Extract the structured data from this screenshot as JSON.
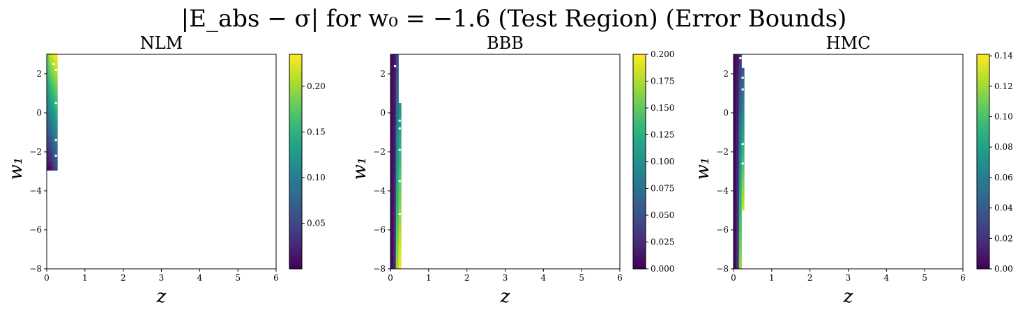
{
  "suptitle": "|E_abs − σ| for w₀ = −1.6 (Test Region) (Error Bounds)",
  "chart_data": [
    {
      "type": "heatmap",
      "title": "NLM",
      "xlabel": "z",
      "ylabel": "w₁",
      "xlim": [
        0,
        6
      ],
      "ylim": [
        -8,
        3
      ],
      "xticks": [
        "0",
        "1",
        "2",
        "3",
        "4",
        "5",
        "6"
      ],
      "yticks": [
        "−8",
        "−6",
        "−4",
        "−2",
        "0",
        "2"
      ],
      "colormap": "viridis",
      "colorbar": {
        "vmin": 0.0,
        "vmax": 0.235,
        "ticks": [
          "0.05",
          "0.10",
          "0.15",
          "0.20"
        ]
      },
      "data_extent": {
        "z": [
          0.0,
          0.28
        ],
        "w1": [
          -2.95,
          3.0
        ]
      },
      "columns": [
        {
          "z": [
            0.0,
            0.07
          ],
          "w1": [
            -2.95,
            3.0
          ],
          "value_bottom": 0.005,
          "value_top": 0.19
        },
        {
          "z": [
            0.07,
            0.14
          ],
          "w1": [
            -2.95,
            3.0
          ],
          "value_bottom": 0.01,
          "value_top": 0.215
        },
        {
          "z": [
            0.14,
            0.21
          ],
          "w1": [
            -2.95,
            3.0
          ],
          "value_bottom": 0.03,
          "value_top": 0.225
        },
        {
          "z": [
            0.21,
            0.28
          ],
          "w1": [
            -2.95,
            3.0
          ],
          "value_bottom": 0.05,
          "value_top": 0.235
        }
      ],
      "gaps": [
        {
          "z": 0.18,
          "w1": 2.5
        },
        {
          "z": 0.24,
          "w1": 2.2
        },
        {
          "z": 0.24,
          "w1": 0.5
        },
        {
          "z": 0.24,
          "w1": -1.4
        },
        {
          "z": 0.24,
          "w1": -2.2
        }
      ]
    },
    {
      "type": "heatmap",
      "title": "BBB",
      "xlabel": "z",
      "ylabel": "w₁",
      "xlim": [
        0,
        6
      ],
      "ylim": [
        -8,
        3
      ],
      "xticks": [
        "0",
        "1",
        "2",
        "3",
        "4",
        "5",
        "6"
      ],
      "yticks": [
        "−8",
        "−6",
        "−4",
        "−2",
        "0",
        "2"
      ],
      "colormap": "viridis",
      "colorbar": {
        "vmin": 0.0,
        "vmax": 0.2,
        "ticks": [
          "0.000",
          "0.025",
          "0.050",
          "0.075",
          "0.100",
          "0.125",
          "0.150",
          "0.175",
          "0.200"
        ]
      },
      "data_extent": {
        "z": [
          0.0,
          0.28
        ],
        "w1": [
          -8.0,
          3.0
        ]
      },
      "columns": [
        {
          "z": [
            0.0,
            0.07
          ],
          "w1": [
            -8.0,
            3.0
          ],
          "value_bottom": 0.005,
          "value_top": 0.005
        },
        {
          "z": [
            0.07,
            0.14
          ],
          "w1": [
            -8.0,
            3.0
          ],
          "value_bottom": 0.02,
          "value_top": 0.01
        },
        {
          "z": [
            0.14,
            0.21
          ],
          "w1": [
            -8.0,
            3.0
          ],
          "value_bottom": 0.17,
          "value_top": 0.04
        },
        {
          "z": [
            0.21,
            0.28
          ],
          "w1": [
            -8.0,
            0.5
          ],
          "value_bottom": 0.2,
          "value_top": 0.1
        }
      ],
      "gaps": [
        {
          "z": 0.12,
          "w1": 2.4
        },
        {
          "z": 0.24,
          "w1": -0.4
        },
        {
          "z": 0.24,
          "w1": -0.8
        },
        {
          "z": 0.24,
          "w1": -1.9
        },
        {
          "z": 0.24,
          "w1": -3.5
        },
        {
          "z": 0.24,
          "w1": -5.2
        }
      ]
    },
    {
      "type": "heatmap",
      "title": "HMC",
      "xlabel": "z",
      "ylabel": "w₁",
      "xlim": [
        0,
        6
      ],
      "ylim": [
        -8,
        3
      ],
      "xticks": [
        "0",
        "1",
        "2",
        "3",
        "4",
        "5",
        "6"
      ],
      "yticks": [
        "−8",
        "−6",
        "−4",
        "−2",
        "0",
        "2"
      ],
      "colormap": "viridis",
      "colorbar": {
        "vmin": 0.0,
        "vmax": 0.141,
        "ticks": [
          "0.00",
          "0.02",
          "0.04",
          "0.06",
          "0.08",
          "0.10",
          "0.12",
          "0.14"
        ]
      },
      "data_extent": {
        "z": [
          0.0,
          0.28
        ],
        "w1": [
          -8.0,
          3.0
        ]
      },
      "columns": [
        {
          "z": [
            0.0,
            0.07
          ],
          "w1": [
            -8.0,
            3.0
          ],
          "value_bottom": 0.003,
          "value_top": 0.003
        },
        {
          "z": [
            0.07,
            0.14
          ],
          "w1": [
            -8.0,
            3.0
          ],
          "value_bottom": 0.02,
          "value_top": 0.008
        },
        {
          "z": [
            0.14,
            0.21
          ],
          "w1": [
            -8.0,
            3.0
          ],
          "value_bottom": 0.12,
          "value_top": 0.02
        },
        {
          "z": [
            0.21,
            0.28
          ],
          "w1": [
            -5.0,
            2.3
          ],
          "value_bottom": 0.13,
          "value_top": 0.04
        }
      ],
      "gaps": [
        {
          "z": 0.18,
          "w1": 2.8
        },
        {
          "z": 0.24,
          "w1": 1.8
        },
        {
          "z": 0.24,
          "w1": 1.2
        },
        {
          "z": 0.24,
          "w1": -1.6
        },
        {
          "z": 0.24,
          "w1": -2.6
        }
      ]
    }
  ]
}
